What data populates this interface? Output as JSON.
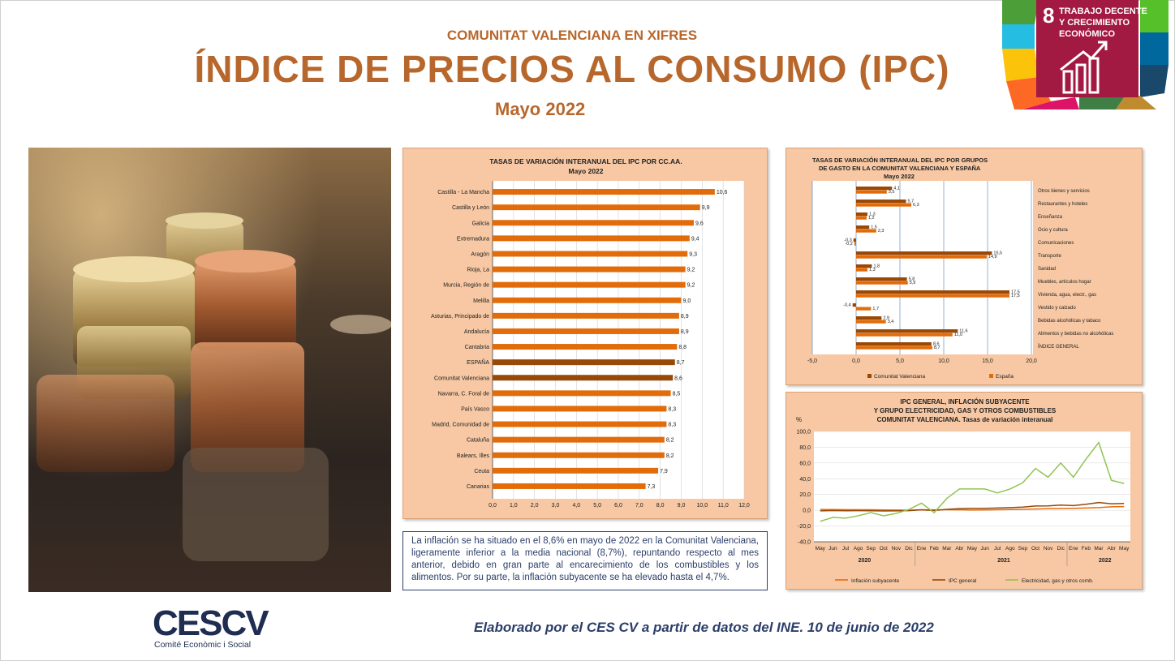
{
  "header": {
    "subtitle": "COMUNITAT VALENCIANA EN XIFRES",
    "title": "ÍNDICE DE PRECIOS AL CONSUMO (IPC)",
    "date": "Mayo 2022"
  },
  "sdg": {
    "number": "8",
    "line1": "TRABAJO DECENTE",
    "line2": "Y CRECIMIENTO",
    "line3": "ECONÓMICO",
    "color": "#a21942"
  },
  "summary_text": "La inflación se ha situado en el 8,6% en mayo de 2022 en la Comunitat Valenciana, ligeramente inferior a la media nacional (8,7%), repuntando respecto al mes anterior, debido en gran parte al encarecimiento de los combustibles y los alimentos. Por su parte, la inflación subyacente se ha elevado hasta el 4,7%.",
  "footer": "Elaborado por el CES CV a partir de datos del INE. 10 de junio de 2022",
  "logo": {
    "text": "CESCV",
    "tagline": "Comité Econòmic i Social"
  },
  "colors": {
    "accent": "#b8672c",
    "navy": "#2b3e6a",
    "panel_bg": "#f7c8a3",
    "bar_orange": "#e36c0a",
    "bar_brown": "#984807"
  },
  "chart_data": [
    {
      "type": "bar",
      "orientation": "horizontal",
      "title": "TASAS DE VARIACIÓN INTERANUAL DEL IPC POR CC.AA.",
      "subtitle": "Mayo 2022",
      "categories": [
        "Castilla - La Mancha",
        "Castilla y León",
        "Galicia",
        "Extremadura",
        "Aragón",
        "Rioja, La",
        "Murcia, Región de",
        "Melilla",
        "Asturias, Principado de",
        "Andalucía",
        "Cantabria",
        "ESPAÑA",
        "Comunitat Valenciana",
        "Navarra, C. Foral de",
        "País Vasco",
        "Madrid, Comunidad de",
        "Cataluña",
        "Balears, Illes",
        "Ceuta",
        "Canarias"
      ],
      "values": [
        10.6,
        9.9,
        9.6,
        9.4,
        9.3,
        9.2,
        9.2,
        9.0,
        8.9,
        8.9,
        8.8,
        8.7,
        8.6,
        8.5,
        8.3,
        8.3,
        8.2,
        8.2,
        7.9,
        7.3
      ],
      "value_labels": [
        "10,6",
        "9,9",
        "9,6",
        "9,4",
        "9,3",
        "9,2",
        "9,2",
        "9,0",
        "8,9",
        "8,9",
        "8,8",
        "8,7",
        "8,6",
        "8,5",
        "8,3",
        "8,3",
        "8,2",
        "8,2",
        "7,9",
        "7,3"
      ],
      "highlight": [
        "ESPAÑA",
        "Comunitat Valenciana"
      ],
      "xlim": [
        0,
        12
      ],
      "ticks": [
        "0,0",
        "1,0",
        "2,0",
        "3,0",
        "4,0",
        "5,0",
        "6,0",
        "7,0",
        "8,0",
        "9,0",
        "10,0",
        "11,0",
        "12,0"
      ]
    },
    {
      "type": "bar",
      "orientation": "horizontal",
      "title_lines": [
        "TASAS DE VARIACIÓN INTERANUAL DEL IPC POR GRUPOS",
        "DE GASTO EN LA COMUNITAT VALENCIANA Y ESPAÑA",
        "Mayo 2022"
      ],
      "categories": [
        "Otros bienes y servicios",
        "Restaurantes y hoteles",
        "Enseñanza",
        "Ocio y cultura",
        "Comunicaciones",
        "Transporte",
        "Sanidad",
        "Muebles, artículos hogar",
        "Vivienda, agua, electr., gas",
        "Vestido y calzado",
        "Bebidas alcohólicas y tabaco",
        "Alimentos y bebidas no alcohólicas",
        "ÍNDICE GENERAL"
      ],
      "series": [
        {
          "name": "Comunitat Valenciana",
          "color": "#984807",
          "values": [
            4.1,
            5.7,
            1.3,
            1.5,
            -0.3,
            15.5,
            1.8,
            5.8,
            17.5,
            -0.4,
            2.9,
            11.6,
            8.6
          ],
          "labels": [
            "4,1",
            "5,7",
            "1,3",
            "1,5",
            "-0,3",
            "15,5",
            "1,8",
            "5,8",
            "17,5",
            "-0,4",
            "2,9",
            "11,6",
            "8,6"
          ]
        },
        {
          "name": "España",
          "color": "#e36c0a",
          "values": [
            3.5,
            6.3,
            1.2,
            2.3,
            -0.2,
            14.9,
            1.3,
            5.9,
            17.5,
            1.7,
            3.4,
            11.0,
            8.7
          ],
          "labels": [
            "3,5",
            "6,3",
            "1,2",
            "2,3",
            "-0,2",
            "14,9",
            "1,3",
            "5,9",
            "17,5",
            "1,7",
            "3,4",
            "11,0",
            "8,7"
          ]
        }
      ],
      "xlim": [
        -5,
        20
      ],
      "ticks": [
        "-5,0",
        "0,0",
        "5,0",
        "10,0",
        "15,0",
        "20,0"
      ]
    },
    {
      "type": "line",
      "title_lines": [
        "IPC GENERAL, INFLACIÓN SUBYACENTE",
        "Y GRUPO ELECTRICIDAD, GAS Y OTROS COMBUSTIBLES",
        "COMUNITAT VALENCIANA. Tasas de variación interanual"
      ],
      "ylabel": "%",
      "ylim": [
        -40,
        100
      ],
      "yticks": [
        "100,0",
        "80,0",
        "60,0",
        "40,0",
        "20,0",
        "0,0",
        "-20,0",
        "-40,0"
      ],
      "x": [
        "May",
        "Jun",
        "Jul",
        "Ago",
        "Sep",
        "Oct",
        "Nov",
        "Dic",
        "Ene",
        "Feb",
        "Mar",
        "Abr",
        "May",
        "Jun",
        "Jul",
        "Ago",
        "Sep",
        "Oct",
        "Nov",
        "Dic",
        "Ene",
        "Feb",
        "Mar",
        "Abr",
        "May"
      ],
      "year_labels": [
        "2020",
        "2021",
        "2022"
      ],
      "series": [
        {
          "name": "Inflación subyacente",
          "color": "#e36c0a",
          "values": [
            1.0,
            0.9,
            0.8,
            0.7,
            0.6,
            0.4,
            0.3,
            0.2,
            0.6,
            0.5,
            0.6,
            0.5,
            0.3,
            0.4,
            0.7,
            0.9,
            1.2,
            1.5,
            1.9,
            2.2,
            2.5,
            2.8,
            3.4,
            4.4,
            4.7
          ]
        },
        {
          "name": "IPC general",
          "color": "#984807",
          "values": [
            -0.7,
            -0.4,
            -0.6,
            -0.5,
            -0.6,
            -0.9,
            -0.8,
            -0.5,
            0.5,
            -0.3,
            1.2,
            2.1,
            2.5,
            2.5,
            2.9,
            3.3,
            4.0,
            5.4,
            5.6,
            6.6,
            6.0,
            7.6,
            9.8,
            8.2,
            8.6
          ]
        },
        {
          "name": "Electricidad, gas y otros comb.",
          "color": "#92c353",
          "values": [
            -14,
            -9,
            -10,
            -7,
            -3,
            -7,
            -4,
            1,
            9,
            -3,
            15,
            27,
            27,
            27,
            22,
            27,
            35,
            53,
            42,
            60,
            42,
            65,
            86,
            38,
            34
          ]
        }
      ]
    }
  ]
}
